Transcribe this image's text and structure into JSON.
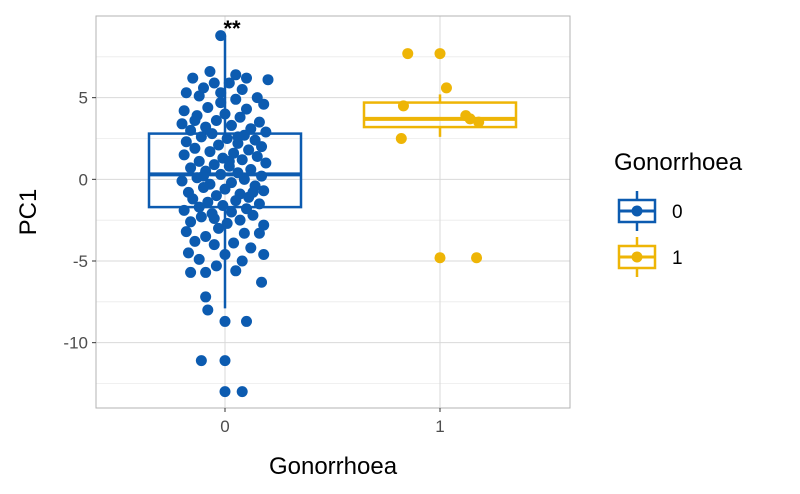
{
  "chart_data": {
    "type": "boxplot",
    "xlabel": "Gonorrhoea",
    "ylabel": "PC1",
    "categories": [
      "0",
      "1"
    ],
    "ylim": [
      -14,
      10
    ],
    "yticks": [
      -10,
      -5,
      0,
      5
    ],
    "grid": true,
    "legend": {
      "title": "Gonorrhoea",
      "placement": "right",
      "entries": [
        {
          "label": "0",
          "color": "#0C5BB0"
        },
        {
          "label": "1",
          "color": "#EEB506"
        }
      ]
    },
    "annotation": {
      "text": "**",
      "category": "0",
      "y": 8.9
    },
    "series": [
      {
        "name": "0",
        "color": "#0C5BB0",
        "box": {
          "whisker_low": -7.9,
          "q1": -1.7,
          "median": 0.3,
          "q3": 2.8,
          "whisker_high": 8.8
        },
        "points": [
          [
            -0.02,
            8.8
          ],
          [
            -0.07,
            6.6
          ],
          [
            0.05,
            6.4
          ],
          [
            0.1,
            6.2
          ],
          [
            0.2,
            6.1
          ],
          [
            -0.15,
            6.2
          ],
          [
            -0.05,
            5.9
          ],
          [
            0.02,
            5.9
          ],
          [
            -0.1,
            5.6
          ],
          [
            0.08,
            5.5
          ],
          [
            -0.18,
            5.3
          ],
          [
            -0.12,
            5.1
          ],
          [
            0.15,
            5.0
          ],
          [
            0.05,
            4.9
          ],
          [
            -0.02,
            4.7
          ],
          [
            0.18,
            4.6
          ],
          [
            -0.08,
            4.4
          ],
          [
            0.1,
            4.3
          ],
          [
            -0.19,
            4.2
          ],
          [
            0.0,
            4.0
          ],
          [
            -0.13,
            3.9
          ],
          [
            0.07,
            3.8
          ],
          [
            -0.04,
            3.6
          ],
          [
            0.16,
            3.5
          ],
          [
            -0.2,
            3.4
          ],
          [
            0.03,
            3.3
          ],
          [
            -0.09,
            3.2
          ],
          [
            0.12,
            3.1
          ],
          [
            -0.16,
            3.0
          ],
          [
            0.19,
            2.9
          ],
          [
            -0.06,
            2.8
          ],
          [
            0.09,
            2.7
          ],
          [
            -0.11,
            2.6
          ],
          [
            0.01,
            2.5
          ],
          [
            0.14,
            2.4
          ],
          [
            -0.18,
            2.3
          ],
          [
            0.06,
            2.2
          ],
          [
            -0.03,
            2.1
          ],
          [
            0.17,
            2.0
          ],
          [
            -0.14,
            1.9
          ],
          [
            0.11,
            1.8
          ],
          [
            -0.07,
            1.7
          ],
          [
            0.04,
            1.6
          ],
          [
            -0.19,
            1.5
          ],
          [
            0.15,
            1.4
          ],
          [
            -0.01,
            1.3
          ],
          [
            0.08,
            1.2
          ],
          [
            -0.12,
            1.1
          ],
          [
            0.19,
            1.0
          ],
          [
            -0.05,
            0.9
          ],
          [
            0.02,
            0.8
          ],
          [
            -0.16,
            0.7
          ],
          [
            0.12,
            0.6
          ],
          [
            -0.09,
            0.5
          ],
          [
            0.06,
            0.4
          ],
          [
            -0.02,
            0.3
          ],
          [
            0.17,
            0.2
          ],
          [
            -0.13,
            0.1
          ],
          [
            0.09,
            0.0
          ],
          [
            -0.2,
            -0.1
          ],
          [
            0.03,
            -0.2
          ],
          [
            -0.07,
            -0.3
          ],
          [
            0.14,
            -0.4
          ],
          [
            -0.1,
            -0.5
          ],
          [
            0.0,
            -0.6
          ],
          [
            0.18,
            -0.7
          ],
          [
            -0.17,
            -0.8
          ],
          [
            0.07,
            -0.9
          ],
          [
            -0.04,
            -1.0
          ],
          [
            0.11,
            -1.1
          ],
          [
            -0.15,
            -1.2
          ],
          [
            0.05,
            -1.3
          ],
          [
            -0.08,
            -1.4
          ],
          [
            0.16,
            -1.5
          ],
          [
            -0.01,
            -1.6
          ],
          [
            -0.12,
            -1.7
          ],
          [
            0.1,
            -1.8
          ],
          [
            -0.19,
            -1.9
          ],
          [
            0.03,
            -2.0
          ],
          [
            -0.06,
            -2.1
          ],
          [
            0.13,
            -2.2
          ],
          [
            -0.11,
            -2.3
          ],
          [
            0.07,
            -2.5
          ],
          [
            -0.16,
            -2.6
          ],
          [
            0.01,
            -2.7
          ],
          [
            0.18,
            -2.8
          ],
          [
            -0.03,
            -3.0
          ],
          [
            -0.18,
            -3.2
          ],
          [
            0.09,
            -3.3
          ],
          [
            -0.09,
            -3.5
          ],
          [
            0.16,
            -3.3
          ],
          [
            -0.14,
            -3.8
          ],
          [
            0.04,
            -3.9
          ],
          [
            -0.05,
            -4.0
          ],
          [
            0.12,
            -4.2
          ],
          [
            -0.17,
            -4.5
          ],
          [
            0.0,
            -4.6
          ],
          [
            0.18,
            -4.6
          ],
          [
            -0.12,
            -4.9
          ],
          [
            0.08,
            -5.0
          ],
          [
            -0.04,
            -5.3
          ],
          [
            -0.16,
            -5.7
          ],
          [
            0.05,
            -5.6
          ],
          [
            -0.09,
            -5.7
          ],
          [
            0.17,
            -6.3
          ],
          [
            -0.09,
            -7.2
          ],
          [
            -0.08,
            -8.0
          ],
          [
            0.0,
            -8.7
          ],
          [
            0.1,
            -8.7
          ],
          [
            -0.11,
            -11.1
          ],
          [
            0.0,
            -11.1
          ],
          [
            0.0,
            -13.0
          ],
          [
            0.08,
            -13.0
          ],
          [
            -0.02,
            5.3
          ],
          [
            0.06,
            2.6
          ],
          [
            -0.1,
            0.2
          ],
          [
            0.13,
            -0.8
          ],
          [
            -0.05,
            -2.4
          ],
          [
            0.02,
            1.1
          ],
          [
            -0.14,
            3.6
          ]
        ]
      },
      {
        "name": "1",
        "color": "#EEB506",
        "box": {
          "whisker_low": 2.6,
          "q1": 3.2,
          "median": 3.7,
          "q3": 4.7,
          "whisker_high": 5.2
        },
        "points": [
          [
            0.85,
            7.7
          ],
          [
            1.0,
            7.7
          ],
          [
            1.03,
            5.6
          ],
          [
            0.83,
            4.5
          ],
          [
            1.12,
            3.9
          ],
          [
            1.14,
            3.7
          ],
          [
            1.18,
            3.5
          ],
          [
            0.82,
            2.5
          ],
          [
            1.0,
            -4.8
          ],
          [
            1.17,
            -4.8
          ]
        ]
      }
    ]
  }
}
